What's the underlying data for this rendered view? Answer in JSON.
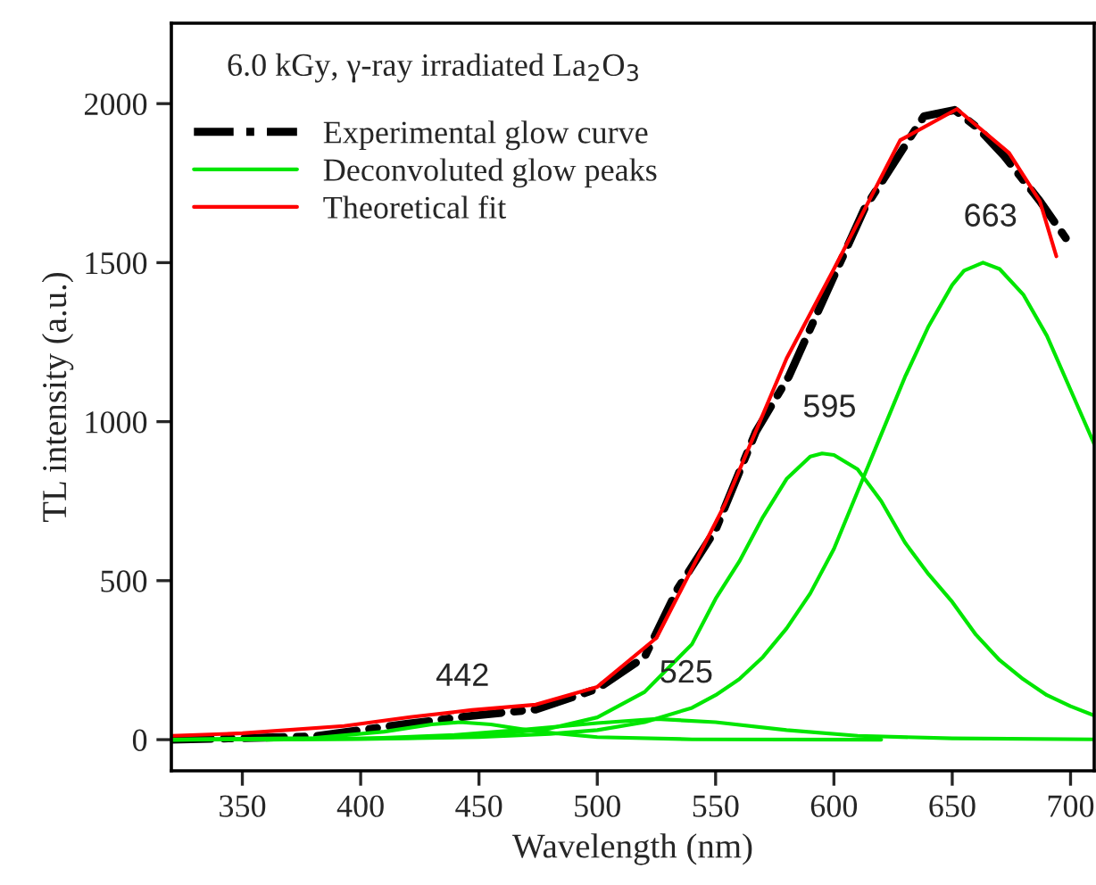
{
  "chart_data": {
    "type": "line",
    "title": "6.0 kGy, γ-ray irradiated La$_{2}$O$_{3}$",
    "xlabel": "Wavelength (nm)",
    "ylabel": "TL intensity (a.u.)",
    "xlim": [
      320,
      710
    ],
    "xticks": [
      350,
      400,
      450,
      500,
      550,
      600,
      650,
      700
    ],
    "ylim": [
      -98,
      2253
    ],
    "yticks": [
      0,
      500,
      1000,
      1500,
      2000
    ],
    "grid": false,
    "legend": "top left",
    "marker": "none",
    "series": [
      {
        "name": "Experimental glow curve",
        "color": "#000000",
        "line_style": "dashdot",
        "x": [
          320,
          380,
          420,
          447,
          474,
          500,
          520,
          534,
          550,
          567,
          581,
          591,
          613,
          638,
          651,
          661,
          672,
          687,
          698
        ],
        "values": [
          0,
          10,
          50,
          75,
          95,
          160,
          260,
          475,
          660,
          968,
          1143,
          1309,
          1671,
          1960,
          1980,
          1922,
          1835,
          1694,
          1577
        ]
      },
      {
        "name": "Deconvoluted glow peaks",
        "color": "#00e600",
        "line_style": "solid",
        "x": [
          320,
          380,
          410,
          430,
          442,
          455,
          475,
          500,
          540,
          620
        ],
        "values": [
          0,
          5,
          25,
          48,
          55,
          48,
          25,
          8,
          1,
          0
        ]
      },
      {
        "color": "#00e600",
        "line_style": "solid",
        "x": [
          360,
          400,
          440,
          470,
          500,
          525,
          550,
          580,
          610,
          650,
          710
        ],
        "values": [
          0,
          3,
          15,
          32,
          52,
          65,
          55,
          30,
          12,
          4,
          1
        ]
      },
      {
        "color": "#00e600",
        "line_style": "solid",
        "x": [
          320,
          420,
          450,
          480,
          500,
          520,
          540,
          550,
          560,
          570,
          580,
          590,
          595,
          600,
          610,
          620,
          630,
          640,
          650,
          660,
          670,
          680,
          690,
          700,
          710
        ],
        "values": [
          0,
          5,
          11,
          35,
          70,
          150,
          300,
          443,
          560,
          700,
          820,
          890,
          900,
          895,
          850,
          750,
          620,
          520,
          433,
          330,
          250,
          190,
          140,
          105,
          76
        ]
      },
      {
        "color": "#00e600",
        "line_style": "solid",
        "x": [
          320,
          400,
          450,
          480,
          500,
          520,
          540,
          550,
          560,
          570,
          580,
          590,
          600,
          610,
          620,
          630,
          640,
          650,
          655,
          663,
          670,
          680,
          690,
          700,
          710
        ],
        "values": [
          0,
          2,
          8,
          18,
          30,
          55,
          100,
          140,
          190,
          260,
          350,
          460,
          600,
          780,
          960,
          1140,
          1300,
          1430,
          1475,
          1500,
          1480,
          1400,
          1270,
          1100,
          930
        ]
      },
      {
        "name": "Theoretical fit",
        "color": "#ff0000",
        "line_style": "solid",
        "x": [
          320,
          350,
          393,
          421,
          447,
          474,
          500,
          525,
          554,
          580,
          600,
          628,
          652,
          674,
          687,
          694
        ],
        "values": [
          12,
          20,
          43,
          71,
          93,
          110,
          166,
          320,
          741,
          1199,
          1480,
          1885,
          1983,
          1845,
          1694,
          1520
        ]
      }
    ],
    "annotations": [
      {
        "text": "442",
        "x": 442,
        "y": 55
      },
      {
        "text": "525",
        "x": 525,
        "y": 65
      },
      {
        "text": "595",
        "x": 595,
        "y": 900
      },
      {
        "text": "663",
        "x": 663,
        "y": 1500
      }
    ]
  }
}
